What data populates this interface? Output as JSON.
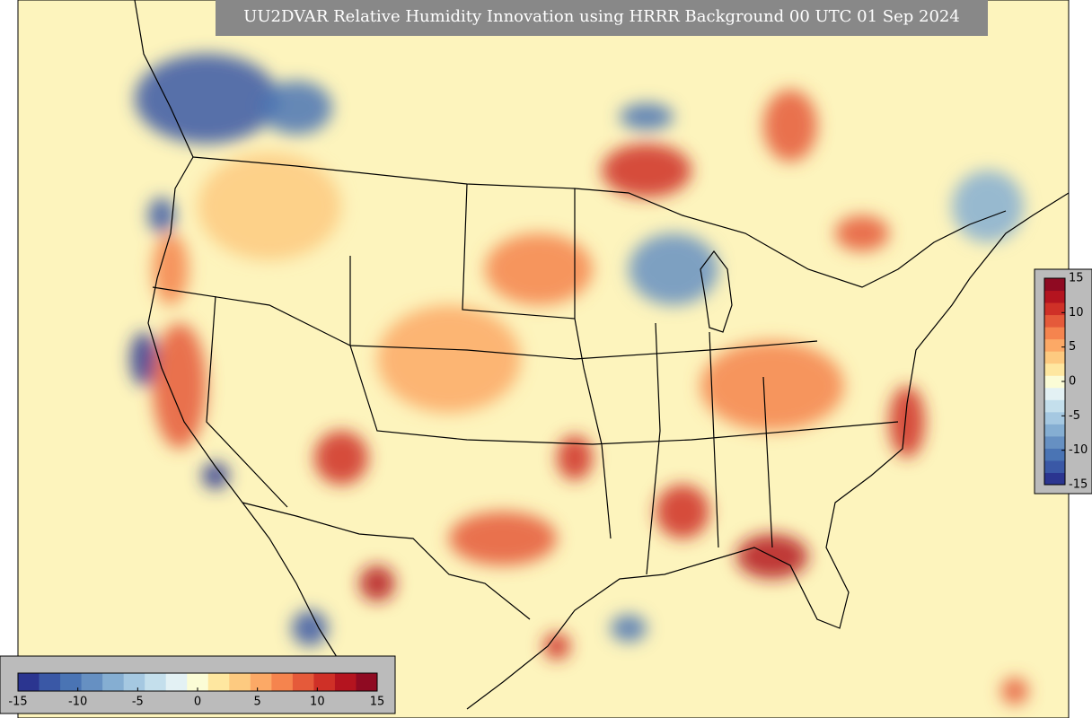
{
  "title": "UU2DVAR Relative Humidity Innovation using HRRR Background 00 UTC 01 Sep 2024",
  "colorbar_horizontal": {
    "range": [
      -15,
      15
    ],
    "ticks": [
      -15,
      -10,
      -5,
      0,
      5,
      10,
      15
    ]
  },
  "colorbar_vertical": {
    "range": [
      -15,
      15
    ],
    "ticks": [
      15,
      10,
      5,
      0,
      -5,
      -10,
      -15
    ]
  }
}
